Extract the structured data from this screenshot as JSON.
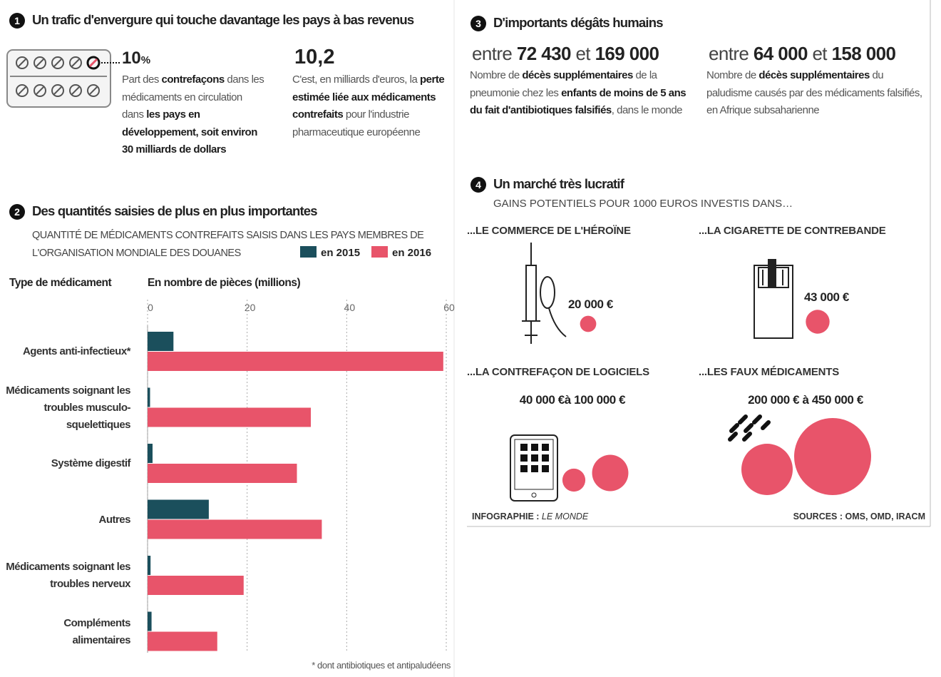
{
  "section1": {
    "number": "1",
    "title": "Un trafic d'envergure qui touche davantage les pays à bas revenus",
    "stat1": {
      "value": "10",
      "unit": "%",
      "text": [
        "Part des ",
        "contrefaçons",
        " dans les médicaments en circulation dans ",
        "les pays en développement, soit environ 30 milliards de dollars"
      ]
    },
    "stat2": {
      "value": "10,2",
      "text": [
        "C'est, en milliards d'euros, la ",
        "perte estimée liée aux médicaments contrefaits",
        " pour l'industrie pharmaceutique européenne"
      ]
    }
  },
  "section3": {
    "number": "3",
    "title": "D'importants dégâts humains",
    "stats": [
      {
        "range": [
          "entre ",
          "72 430",
          " et ",
          "169 000"
        ],
        "text": [
          "Nombre de ",
          "décès supplémentaires",
          " de la pneumonie chez les ",
          "enfants de moins de 5 ans du fait d'antibiotiques falsifiés",
          ", dans le monde"
        ]
      },
      {
        "range": [
          "entre ",
          "64 000",
          " et ",
          "158 000"
        ],
        "text": [
          "Nombre de ",
          "décès supplémentaires",
          " du paludisme causés par des médicaments falsifiés, en Afrique subsaharienne"
        ]
      }
    ]
  },
  "chart_data": {
    "type": "bar",
    "number": "2",
    "title": "Des quantités saisies de plus en plus importantes",
    "subtitle": "QUANTITÉ DE MÉDICAMENTS CONTREFAITS SAISIS DANS LES PAYS MEMBRES DE L'ORGANISATION MONDIALE DES DOUANES",
    "category_label": "Type de médicament",
    "x_label": "En nombre de pièces (millions)",
    "categories": [
      "Agents anti-infectieux*",
      "Médicaments soignant les troubles musculo-squelettiques",
      "Système digestif",
      "Autres",
      "Médicaments soignant les troubles nerveux",
      "Compléments alimentaires"
    ],
    "series": [
      {
        "name": "en 2015",
        "color": "#1b4f5c",
        "values": [
          5.2,
          0.5,
          1.0,
          12.3,
          0.6,
          0.8
        ]
      },
      {
        "name": "en 2016",
        "color": "#e8546a",
        "values": [
          59.4,
          32.8,
          30,
          35,
          19.3,
          14
        ]
      }
    ],
    "xlim": [
      0,
      60
    ],
    "xticks": [
      0,
      20,
      40,
      60
    ],
    "grid": true,
    "note": "* dont antibiotiques et antipaludéens"
  },
  "section4": {
    "number": "4",
    "title": "Un marché très lucratif",
    "subtitle": "GAINS POTENTIELS POUR 1000 EUROS INVESTIS DANS…",
    "color": "#e8546a",
    "items": [
      {
        "label": "...LE COMMERCE DE L'HÉROÏNE",
        "value_label": "20 000 €",
        "values": [
          20000
        ]
      },
      {
        "label": "...LA CIGARETTE DE CONTREBANDE",
        "value_label": "43 000 €",
        "values": [
          43000
        ]
      },
      {
        "label": "...LA CONTREFAÇON DE LOGICIELS",
        "value_label": "40 000 €à 100 000 €",
        "values": [
          40000,
          100000
        ]
      },
      {
        "label": "...LES FAUX MÉDICAMENTS",
        "value_label": "200 000 € à 450 000 €",
        "values": [
          200000,
          450000
        ]
      }
    ]
  },
  "footer": {
    "credit": "INFOGRAPHIE : ",
    "credit_name": "LE MONDE",
    "sources": "SOURCES : OMS, OMD, IRACM"
  }
}
